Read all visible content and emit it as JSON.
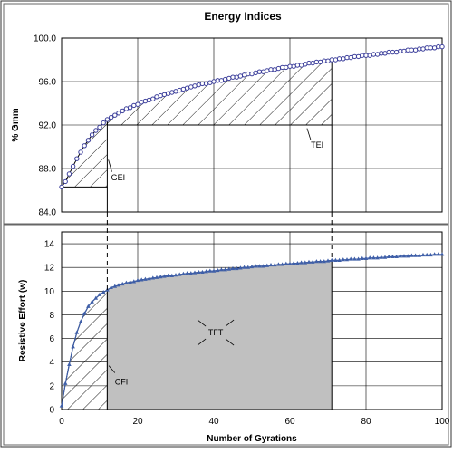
{
  "chart_data": [
    {
      "type": "scatter",
      "title": "Energy Indices",
      "ylabel": "% Gmm",
      "xlabel": "",
      "xlim": [
        0,
        100
      ],
      "ylim": [
        84.0,
        100.0
      ],
      "yticks": [
        "84.0",
        "88.0",
        "92.0",
        "96.0",
        "100.0"
      ],
      "grid": true,
      "x_grid_step": 20,
      "series": [
        {
          "marker": "open-circle",
          "color": "#3a3d9a",
          "x": [
            0,
            1,
            2,
            3,
            4,
            5,
            6,
            7,
            8,
            9,
            10,
            11,
            12,
            13,
            14,
            15,
            16,
            17,
            18,
            19,
            20,
            21,
            22,
            23,
            24,
            25,
            26,
            27,
            28,
            29,
            30,
            31,
            32,
            33,
            34,
            35,
            36,
            37,
            38,
            39,
            40,
            41,
            42,
            43,
            44,
            45,
            46,
            47,
            48,
            49,
            50,
            51,
            52,
            53,
            54,
            55,
            56,
            57,
            58,
            59,
            60,
            61,
            62,
            63,
            64,
            65,
            66,
            67,
            68,
            69,
            70,
            71,
            72,
            73,
            74,
            75,
            76,
            77,
            78,
            79,
            80,
            81,
            82,
            83,
            84,
            85,
            86,
            87,
            88,
            89,
            90,
            91,
            92,
            93,
            94,
            95,
            96,
            97,
            98,
            99,
            100
          ],
          "y": [
            86.3,
            86.8,
            87.5,
            88.2,
            88.9,
            89.5,
            90.1,
            90.6,
            91.1,
            91.5,
            91.8,
            92.2,
            92.5,
            92.7,
            92.9,
            93.1,
            93.3,
            93.5,
            93.6,
            93.8,
            93.9,
            94.1,
            94.2,
            94.3,
            94.4,
            94.6,
            94.7,
            94.8,
            94.9,
            95.0,
            95.1,
            95.2,
            95.3,
            95.4,
            95.5,
            95.6,
            95.7,
            95.8,
            95.8,
            95.9,
            96.0,
            96.1,
            96.1,
            96.2,
            96.3,
            96.4,
            96.4,
            96.5,
            96.6,
            96.7,
            96.7,
            96.8,
            96.9,
            96.9,
            97.0,
            97.1,
            97.1,
            97.2,
            97.3,
            97.3,
            97.4,
            97.4,
            97.5,
            97.5,
            97.6,
            97.7,
            97.7,
            97.8,
            97.8,
            97.9,
            97.9,
            98.0,
            98.0,
            98.1,
            98.1,
            98.2,
            98.2,
            98.3,
            98.3,
            98.4,
            98.4,
            98.4,
            98.5,
            98.5,
            98.6,
            98.6,
            98.7,
            98.7,
            98.7,
            98.8,
            98.8,
            98.9,
            98.9,
            98.9,
            99.0,
            99.0,
            99.1,
            99.1,
            99.1,
            99.2,
            99.2
          ]
        }
      ],
      "regions": [
        {
          "label": "GEI",
          "x_start": 0,
          "x_end": 12,
          "y_base": 86.3,
          "style": "hatched"
        },
        {
          "label": "TEI",
          "x_start": 12,
          "x_end": 71,
          "y_base": 92.0,
          "style": "hatched"
        }
      ],
      "vertical_markers": [
        12,
        71
      ]
    },
    {
      "type": "scatter",
      "title": "",
      "ylabel": "Resistive Effort (w)",
      "xlabel": "Number of Gyrations",
      "xlim": [
        0,
        100
      ],
      "ylim": [
        0,
        15
      ],
      "xticks": [
        "0",
        "20",
        "40",
        "60",
        "80",
        "100"
      ],
      "yticks": [
        "0",
        "2",
        "4",
        "6",
        "8",
        "10",
        "12",
        "14"
      ],
      "grid": true,
      "series": [
        {
          "marker": "filled-triangle",
          "color": "#3f5fa8",
          "x": [
            0,
            1,
            2,
            3,
            4,
            5,
            6,
            7,
            8,
            9,
            10,
            11,
            12,
            13,
            14,
            15,
            16,
            17,
            18,
            19,
            20,
            21,
            22,
            23,
            24,
            25,
            26,
            27,
            28,
            29,
            30,
            31,
            32,
            33,
            34,
            35,
            36,
            37,
            38,
            39,
            40,
            41,
            42,
            43,
            44,
            45,
            46,
            47,
            48,
            49,
            50,
            51,
            52,
            53,
            54,
            55,
            56,
            57,
            58,
            59,
            60,
            61,
            62,
            63,
            64,
            65,
            66,
            67,
            68,
            69,
            70,
            71,
            72,
            73,
            74,
            75,
            76,
            77,
            78,
            79,
            80,
            81,
            82,
            83,
            84,
            85,
            86,
            87,
            88,
            89,
            90,
            91,
            92,
            93,
            94,
            95,
            96,
            97,
            98,
            99,
            100
          ],
          "y": [
            0.3,
            2.2,
            3.8,
            5.3,
            6.5,
            7.4,
            8.1,
            8.7,
            9.1,
            9.4,
            9.7,
            9.9,
            10.1,
            10.3,
            10.4,
            10.5,
            10.6,
            10.7,
            10.75,
            10.8,
            10.9,
            10.95,
            11.0,
            11.05,
            11.1,
            11.15,
            11.2,
            11.25,
            11.3,
            11.3,
            11.35,
            11.4,
            11.45,
            11.5,
            11.5,
            11.55,
            11.6,
            11.6,
            11.65,
            11.7,
            11.7,
            11.75,
            11.8,
            11.8,
            11.85,
            11.9,
            11.9,
            11.95,
            12.0,
            12.0,
            12.05,
            12.1,
            12.1,
            12.1,
            12.15,
            12.2,
            12.2,
            12.25,
            12.25,
            12.3,
            12.3,
            12.35,
            12.35,
            12.4,
            12.4,
            12.45,
            12.45,
            12.5,
            12.5,
            12.5,
            12.55,
            12.6,
            12.6,
            12.6,
            12.65,
            12.65,
            12.7,
            12.7,
            12.7,
            12.75,
            12.75,
            12.8,
            12.8,
            12.8,
            12.85,
            12.85,
            12.9,
            12.9,
            12.9,
            12.95,
            12.95,
            12.95,
            13.0,
            13.0,
            13.0,
            13.05,
            13.05,
            13.05,
            13.1,
            13.1,
            13.1
          ]
        }
      ],
      "regions": [
        {
          "label": "CFI",
          "x_start": 0,
          "x_end": 12,
          "style": "hatched"
        },
        {
          "label": "TFT",
          "x_start": 12,
          "x_end": 71,
          "style": "gray-fill"
        }
      ],
      "vertical_markers": [
        12,
        71
      ]
    }
  ]
}
